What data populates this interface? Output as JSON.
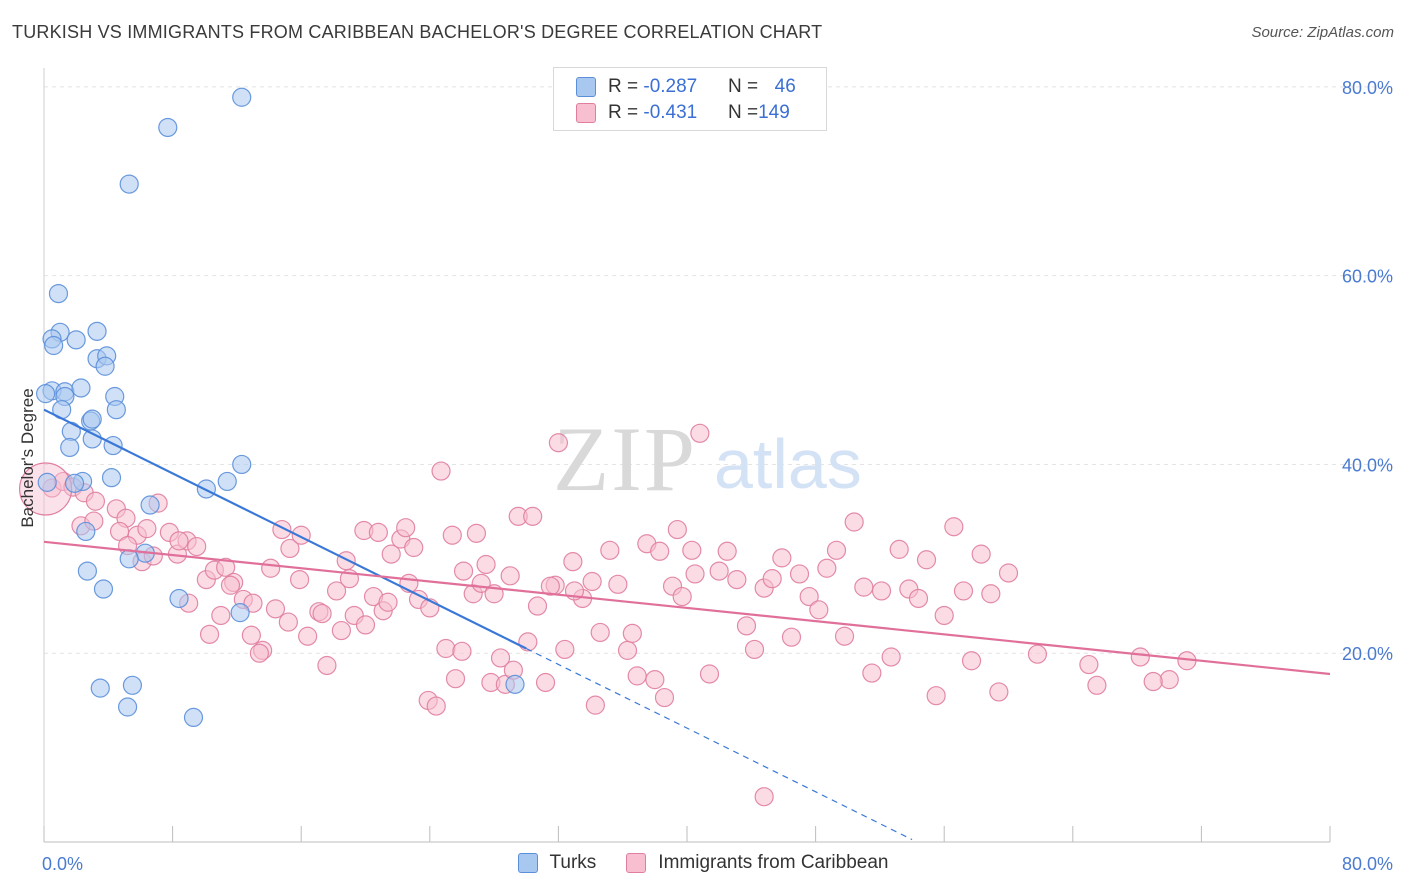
{
  "header": {
    "title": "TURKISH VS IMMIGRANTS FROM CARIBBEAN BACHELOR'S DEGREE CORRELATION CHART",
    "source": "Source: ZipAtlas.com"
  },
  "watermark": {
    "zip": "ZIP",
    "atlas": "atlas"
  },
  "legend": {
    "rows": [
      {
        "r_label": "R = ",
        "r_value": "-0.287",
        "n_label": "N = ",
        "n_value": "46",
        "color": "#a9c8f0",
        "border": "#5b8fd9"
      },
      {
        "r_label": "R = ",
        "r_value": "-0.431",
        "n_label": "N = ",
        "n_value": "149",
        "color": "#f7bfd0",
        "border": "#e07ea0"
      }
    ]
  },
  "bottom_legend": {
    "items": [
      {
        "label": "Turks",
        "color": "#a9c8f0",
        "border": "#5b8fd9"
      },
      {
        "label": "Immigrants from Caribbean",
        "color": "#f7bfd0",
        "border": "#e07ea0"
      }
    ]
  },
  "chart_data": {
    "type": "scatter",
    "title": "TURKISH VS IMMIGRANTS FROM CARIBBEAN BACHELOR'S DEGREE CORRELATION CHART",
    "ylabel": "Bachelor's Degree",
    "xlabel": "",
    "xlim": [
      0,
      80
    ],
    "ylim": [
      0,
      82
    ],
    "x_tick_labels": [
      "0.0%",
      "80.0%"
    ],
    "y_ticks": [
      20,
      40,
      60,
      80
    ],
    "y_tick_labels": [
      "20.0%",
      "40.0%",
      "60.0%",
      "80.0%"
    ],
    "grid": "horizontal dashed",
    "legend_placement": "top-center",
    "series": [
      {
        "name": "Turks",
        "color": "#a9c8f0",
        "stroke": "#5b8fd9",
        "line_color": "#3a78d8",
        "trend": {
          "x0": 0,
          "y0": 45.8,
          "x1": 30,
          "y1": 20.5,
          "extend_to_x": 54
        },
        "points": [
          [
            12.3,
            78.9
          ],
          [
            7.7,
            75.7
          ],
          [
            5.3,
            69.7
          ],
          [
            0.9,
            58.1
          ],
          [
            1.0,
            54.0
          ],
          [
            3.3,
            54.1
          ],
          [
            0.5,
            53.3
          ],
          [
            0.6,
            52.6
          ],
          [
            2.0,
            53.2
          ],
          [
            3.3,
            51.2
          ],
          [
            3.9,
            51.5
          ],
          [
            3.8,
            50.4
          ],
          [
            0.5,
            47.8
          ],
          [
            1.3,
            47.7
          ],
          [
            2.3,
            48.1
          ],
          [
            1.3,
            47.2
          ],
          [
            0.1,
            47.5
          ],
          [
            4.4,
            47.2
          ],
          [
            1.1,
            45.8
          ],
          [
            4.5,
            45.8
          ],
          [
            2.9,
            44.6
          ],
          [
            3.0,
            44.8
          ],
          [
            1.7,
            43.5
          ],
          [
            3.0,
            42.7
          ],
          [
            4.3,
            42.0
          ],
          [
            1.6,
            41.8
          ],
          [
            12.3,
            40.0
          ],
          [
            11.4,
            38.2
          ],
          [
            2.4,
            38.2
          ],
          [
            4.2,
            38.6
          ],
          [
            10.1,
            37.4
          ],
          [
            1.9,
            38.0
          ],
          [
            6.6,
            35.7
          ],
          [
            2.6,
            32.9
          ],
          [
            6.3,
            30.6
          ],
          [
            5.3,
            30.0
          ],
          [
            2.7,
            28.7
          ],
          [
            3.7,
            26.8
          ],
          [
            8.4,
            25.8
          ],
          [
            12.2,
            24.3
          ],
          [
            3.5,
            16.3
          ],
          [
            5.5,
            16.6
          ],
          [
            5.2,
            14.3
          ],
          [
            9.3,
            13.2
          ],
          [
            29.3,
            16.7
          ],
          [
            0.2,
            38.1
          ]
        ]
      },
      {
        "name": "Immigrants from Caribbean",
        "color": "#f7bfd0",
        "stroke": "#e07ea0",
        "line_color": "#e0709a",
        "trend": {
          "x0": 0,
          "y0": 31.8,
          "x1": 80,
          "y1": 17.8
        },
        "points": [
          [
            0.5,
            37.5
          ],
          [
            1.2,
            38.2
          ],
          [
            1.8,
            37.6
          ],
          [
            2.5,
            37.0
          ],
          [
            3.2,
            36.1
          ],
          [
            4.5,
            35.3
          ],
          [
            5.1,
            34.3
          ],
          [
            5.8,
            32.5
          ],
          [
            6.4,
            33.2
          ],
          [
            7.1,
            35.9
          ],
          [
            7.8,
            32.8
          ],
          [
            8.3,
            30.5
          ],
          [
            8.9,
            31.9
          ],
          [
            9.5,
            31.3
          ],
          [
            10.1,
            27.8
          ],
          [
            10.6,
            28.8
          ],
          [
            11.3,
            29.1
          ],
          [
            11.8,
            27.5
          ],
          [
            12.4,
            25.7
          ],
          [
            13.0,
            25.3
          ],
          [
            13.6,
            20.3
          ],
          [
            14.1,
            29.0
          ],
          [
            14.8,
            33.1
          ],
          [
            15.3,
            31.1
          ],
          [
            15.9,
            27.8
          ],
          [
            16.4,
            21.8
          ],
          [
            17.1,
            24.4
          ],
          [
            17.6,
            18.7
          ],
          [
            18.2,
            26.6
          ],
          [
            18.8,
            29.8
          ],
          [
            19.3,
            24.0
          ],
          [
            19.9,
            33.0
          ],
          [
            20.5,
            26.0
          ],
          [
            21.1,
            24.5
          ],
          [
            21.6,
            30.5
          ],
          [
            22.2,
            32.1
          ],
          [
            22.7,
            27.4
          ],
          [
            23.3,
            25.7
          ],
          [
            23.9,
            15.0
          ],
          [
            24.4,
            14.4
          ],
          [
            25.0,
            20.5
          ],
          [
            25.6,
            17.3
          ],
          [
            26.1,
            28.7
          ],
          [
            26.7,
            26.3
          ],
          [
            27.2,
            27.4
          ],
          [
            27.8,
            16.9
          ],
          [
            28.4,
            19.5
          ],
          [
            29.0,
            28.2
          ],
          [
            29.5,
            34.5
          ],
          [
            30.1,
            21.2
          ],
          [
            30.7,
            25.0
          ],
          [
            31.2,
            16.9
          ],
          [
            31.8,
            27.2
          ],
          [
            32.4,
            20.4
          ],
          [
            32.9,
            29.7
          ],
          [
            33.5,
            25.8
          ],
          [
            34.1,
            27.6
          ],
          [
            34.6,
            22.2
          ],
          [
            35.2,
            30.9
          ],
          [
            35.7,
            27.3
          ],
          [
            36.3,
            20.3
          ],
          [
            36.9,
            17.6
          ],
          [
            37.5,
            31.6
          ],
          [
            38.0,
            17.2
          ],
          [
            38.6,
            15.3
          ],
          [
            39.1,
            27.1
          ],
          [
            39.7,
            26.0
          ],
          [
            40.3,
            30.9
          ],
          [
            40.8,
            43.3
          ],
          [
            41.4,
            17.8
          ],
          [
            42.0,
            28.7
          ],
          [
            42.5,
            30.8
          ],
          [
            43.1,
            27.8
          ],
          [
            43.7,
            22.9
          ],
          [
            44.2,
            20.4
          ],
          [
            44.8,
            26.9
          ],
          [
            45.3,
            27.9
          ],
          [
            45.9,
            30.1
          ],
          [
            46.5,
            21.7
          ],
          [
            47.0,
            28.4
          ],
          [
            47.6,
            26.0
          ],
          [
            48.2,
            24.6
          ],
          [
            48.7,
            29.0
          ],
          [
            49.3,
            30.9
          ],
          [
            49.8,
            21.8
          ],
          [
            50.4,
            33.9
          ],
          [
            51.0,
            27.0
          ],
          [
            51.5,
            17.9
          ],
          [
            52.1,
            26.6
          ],
          [
            52.7,
            19.6
          ],
          [
            53.2,
            31.0
          ],
          [
            53.8,
            26.8
          ],
          [
            54.4,
            25.8
          ],
          [
            54.9,
            29.9
          ],
          [
            55.5,
            15.5
          ],
          [
            56.0,
            24.0
          ],
          [
            56.6,
            33.4
          ],
          [
            57.2,
            26.6
          ],
          [
            57.7,
            19.2
          ],
          [
            58.3,
            30.5
          ],
          [
            58.9,
            26.3
          ],
          [
            59.4,
            15.9
          ],
          [
            60.0,
            28.5
          ],
          [
            61.8,
            19.9
          ],
          [
            65.0,
            18.8
          ],
          [
            65.5,
            16.6
          ],
          [
            68.2,
            19.6
          ],
          [
            70.0,
            17.2
          ],
          [
            69.0,
            17.0
          ],
          [
            71.1,
            19.2
          ],
          [
            44.8,
            4.8
          ],
          [
            2.3,
            33.5
          ],
          [
            3.1,
            34.0
          ],
          [
            4.7,
            32.9
          ],
          [
            5.2,
            31.4
          ],
          [
            6.1,
            29.7
          ],
          [
            6.8,
            30.3
          ],
          [
            8.4,
            31.9
          ],
          [
            9.0,
            25.3
          ],
          [
            10.3,
            22.0
          ],
          [
            11.0,
            24.0
          ],
          [
            11.6,
            27.2
          ],
          [
            12.9,
            21.9
          ],
          [
            13.4,
            20.0
          ],
          [
            14.4,
            24.7
          ],
          [
            15.2,
            23.3
          ],
          [
            16.0,
            32.5
          ],
          [
            17.3,
            24.2
          ],
          [
            18.5,
            22.4
          ],
          [
            19.0,
            27.9
          ],
          [
            20.0,
            23.0
          ],
          [
            20.8,
            32.8
          ],
          [
            21.4,
            25.4
          ],
          [
            22.5,
            33.3
          ],
          [
            23.0,
            31.2
          ],
          [
            24.0,
            24.8
          ],
          [
            24.7,
            39.3
          ],
          [
            25.4,
            32.5
          ],
          [
            26.0,
            20.2
          ],
          [
            26.9,
            32.7
          ],
          [
            27.5,
            29.4
          ],
          [
            28.0,
            26.3
          ],
          [
            28.7,
            16.7
          ],
          [
            29.2,
            18.2
          ],
          [
            30.4,
            34.5
          ],
          [
            31.5,
            27.1
          ],
          [
            32.0,
            42.3
          ],
          [
            33.0,
            26.6
          ],
          [
            34.3,
            14.5
          ],
          [
            36.6,
            22.1
          ],
          [
            38.3,
            30.8
          ],
          [
            39.4,
            33.1
          ],
          [
            40.5,
            28.4
          ]
        ]
      }
    ]
  }
}
